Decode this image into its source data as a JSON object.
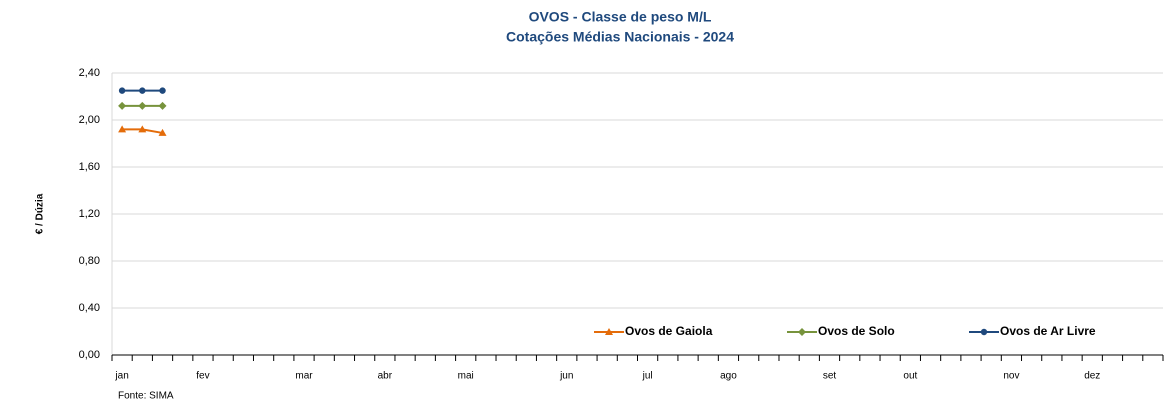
{
  "chart_data": {
    "type": "line",
    "title": [
      "OVOS - Classe de peso M/L",
      "Cotações Médias Nacionais - 2024"
    ],
    "y_label": "€ / Dúzia",
    "source": "Fonte: SIMA",
    "categories": [
      "jan",
      null,
      null,
      null,
      "fev",
      null,
      null,
      null,
      null,
      "mar",
      null,
      null,
      null,
      "abr",
      null,
      null,
      null,
      "mai",
      null,
      null,
      null,
      null,
      "jun",
      null,
      null,
      null,
      "jul",
      null,
      null,
      null,
      "ago",
      null,
      null,
      null,
      null,
      "set",
      null,
      null,
      null,
      "out",
      null,
      null,
      null,
      null,
      "nov",
      null,
      null,
      null,
      "dez",
      null,
      null,
      null
    ],
    "series": [
      {
        "name": "Ovos de Gaiola",
        "color": "#e46c0a",
        "marker": "triangle",
        "values": [
          1.92,
          1.92,
          1.89,
          null,
          null,
          null,
          null,
          null,
          null,
          null,
          null,
          null,
          null,
          null,
          null,
          null,
          null,
          null,
          null,
          null,
          null,
          null,
          null,
          null,
          null,
          null,
          null,
          null,
          null,
          null,
          null,
          null,
          null,
          null,
          null,
          null,
          null,
          null,
          null,
          null,
          null,
          null,
          null,
          null,
          null,
          null,
          null,
          null,
          null,
          null,
          null,
          null
        ]
      },
      {
        "name": "Ovos de Solo",
        "color": "#77933c",
        "marker": "diamond",
        "values": [
          2.12,
          2.12,
          2.12,
          null,
          null,
          null,
          null,
          null,
          null,
          null,
          null,
          null,
          null,
          null,
          null,
          null,
          null,
          null,
          null,
          null,
          null,
          null,
          null,
          null,
          null,
          null,
          null,
          null,
          null,
          null,
          null,
          null,
          null,
          null,
          null,
          null,
          null,
          null,
          null,
          null,
          null,
          null,
          null,
          null,
          null,
          null,
          null,
          null,
          null,
          null,
          null,
          null
        ]
      },
      {
        "name": "Ovos de Ar Livre",
        "color": "#1f497d",
        "marker": "circle",
        "values": [
          2.25,
          2.25,
          2.25,
          null,
          null,
          null,
          null,
          null,
          null,
          null,
          null,
          null,
          null,
          null,
          null,
          null,
          null,
          null,
          null,
          null,
          null,
          null,
          null,
          null,
          null,
          null,
          null,
          null,
          null,
          null,
          null,
          null,
          null,
          null,
          null,
          null,
          null,
          null,
          null,
          null,
          null,
          null,
          null,
          null,
          null,
          null,
          null,
          null,
          null,
          null,
          null,
          null
        ]
      }
    ],
    "ylim": [
      0,
      2.4
    ],
    "yticks": [
      {
        "value": 0,
        "label": "0,00"
      },
      {
        "value": 0.4,
        "label": "0,40"
      },
      {
        "value": 0.8,
        "label": "0,80"
      },
      {
        "value": 1.2,
        "label": "1,20"
      },
      {
        "value": 1.6,
        "label": "1,60"
      },
      {
        "value": 2.0,
        "label": "2,00"
      },
      {
        "value": 2.4,
        "label": "2,40"
      }
    ],
    "grid": true,
    "legend": "bottom-right"
  }
}
